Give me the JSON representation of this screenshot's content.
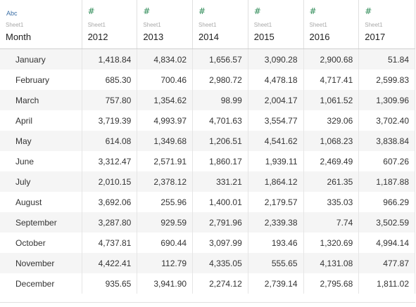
{
  "columns": [
    {
      "type_icon": "Abc",
      "type_name": "text-type-icon",
      "source": "Sheet1",
      "name": "Month"
    },
    {
      "type_icon": "#",
      "type_name": "number-type-icon",
      "source": "Sheet1",
      "name": "2012"
    },
    {
      "type_icon": "#",
      "type_name": "number-type-icon",
      "source": "Sheet1",
      "name": "2013"
    },
    {
      "type_icon": "#",
      "type_name": "number-type-icon",
      "source": "Sheet1",
      "name": "2014"
    },
    {
      "type_icon": "#",
      "type_name": "number-type-icon",
      "source": "Sheet1",
      "name": "2015"
    },
    {
      "type_icon": "#",
      "type_name": "number-type-icon",
      "source": "Sheet1",
      "name": "2016"
    },
    {
      "type_icon": "#",
      "type_name": "number-type-icon",
      "source": "Sheet1",
      "name": "2017"
    }
  ],
  "rows": [
    [
      "January",
      "1,418.84",
      "4,834.02",
      "1,656.57",
      "3,090.28",
      "2,900.68",
      "51.84"
    ],
    [
      "February",
      "685.30",
      "700.46",
      "2,980.72",
      "4,478.18",
      "4,717.41",
      "2,599.83"
    ],
    [
      "March",
      "757.80",
      "1,354.62",
      "98.99",
      "2,004.17",
      "1,061.52",
      "1,309.96"
    ],
    [
      "April",
      "3,719.39",
      "4,993.97",
      "4,701.63",
      "3,554.77",
      "329.06",
      "3,702.40"
    ],
    [
      "May",
      "614.08",
      "1,349.68",
      "1,206.51",
      "4,541.62",
      "1,068.23",
      "3,838.84"
    ],
    [
      "June",
      "3,312.47",
      "2,571.91",
      "1,860.17",
      "1,939.11",
      "2,469.49",
      "607.26"
    ],
    [
      "July",
      "2,010.15",
      "2,378.12",
      "331.21",
      "1,864.12",
      "261.35",
      "1,187.88"
    ],
    [
      "August",
      "3,692.06",
      "255.96",
      "1,400.01",
      "2,179.57",
      "335.03",
      "966.29"
    ],
    [
      "September",
      "3,287.80",
      "929.59",
      "2,791.96",
      "2,339.38",
      "7.74",
      "3,502.59"
    ],
    [
      "October",
      "4,737.81",
      "690.44",
      "3,097.99",
      "193.46",
      "1,320.69",
      "4,994.14"
    ],
    [
      "November",
      "4,422.41",
      "112.79",
      "4,335.05",
      "555.65",
      "4,131.08",
      "477.87"
    ],
    [
      "December",
      "935.65",
      "3,941.90",
      "2,274.12",
      "2,739.14",
      "2,795.68",
      "1,811.02"
    ]
  ],
  "colors": {
    "text_type": "#3a6ea5",
    "number_type": "#2e8b57",
    "alt_row": "#f5f5f5"
  }
}
